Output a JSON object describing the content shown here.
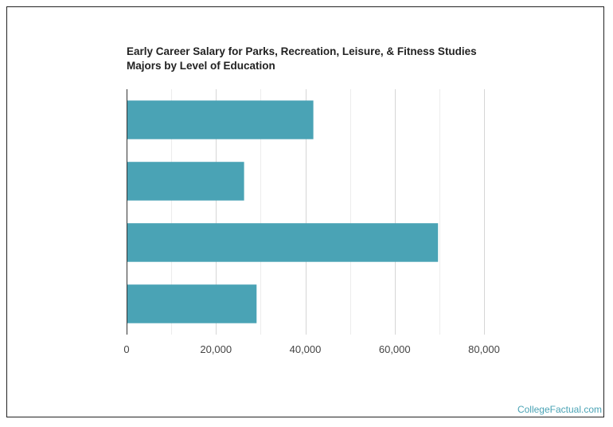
{
  "chart_data": {
    "type": "bar",
    "orientation": "horizontal",
    "title": "Early Career Salary for Parks, Recreation, Leisure, & Fitness Studies Majors by Level of Education",
    "title_lines": [
      "Early Career Salary for Parks, Recreation, Leisure, & Fitness Studies",
      "Majors by Level of Education"
    ],
    "categories": [
      "",
      "",
      "",
      ""
    ],
    "values": [
      41800,
      26300,
      69700,
      29100
    ],
    "xlim": [
      0,
      80000
    ],
    "x_ticks": [
      0,
      20000,
      40000,
      60000,
      80000
    ],
    "x_tick_labels": [
      "0",
      "20,000",
      "40,000",
      "60,000",
      "80,000"
    ],
    "grid": true,
    "bar_color": "#4aa3b5",
    "grid_color": "#d6d6d6"
  },
  "watermark": "CollegeFactual.com"
}
